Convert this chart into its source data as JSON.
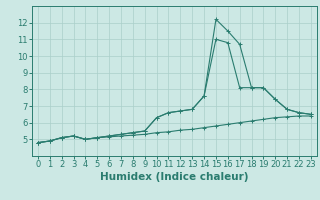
{
  "xlabel": "Humidex (Indice chaleur)",
  "x": [
    0,
    1,
    2,
    3,
    4,
    5,
    6,
    7,
    8,
    9,
    10,
    11,
    12,
    13,
    14,
    15,
    16,
    17,
    18,
    19,
    20,
    21,
    22,
    23
  ],
  "line1": [
    4.8,
    4.9,
    5.1,
    5.2,
    5.0,
    5.1,
    5.15,
    5.2,
    5.25,
    5.3,
    5.4,
    5.45,
    5.55,
    5.6,
    5.7,
    5.8,
    5.9,
    6.0,
    6.1,
    6.2,
    6.3,
    6.35,
    6.4,
    6.4
  ],
  "line2": [
    4.8,
    4.9,
    5.1,
    5.2,
    5.0,
    5.1,
    5.2,
    5.3,
    5.4,
    5.5,
    6.3,
    6.6,
    6.7,
    6.8,
    7.6,
    11.0,
    10.8,
    8.1,
    8.1,
    8.1,
    7.4,
    6.8,
    6.6,
    6.5
  ],
  "line3": [
    4.8,
    4.9,
    5.1,
    5.2,
    5.0,
    5.1,
    5.2,
    5.3,
    5.4,
    5.5,
    6.3,
    6.6,
    6.7,
    6.8,
    7.6,
    12.2,
    11.5,
    10.7,
    8.1,
    8.1,
    7.4,
    6.8,
    6.6,
    6.5
  ],
  "ylim": [
    4,
    13
  ],
  "xlim": [
    -0.5,
    23.5
  ],
  "yticks": [
    5,
    6,
    7,
    8,
    9,
    10,
    11,
    12
  ],
  "xticks": [
    0,
    1,
    2,
    3,
    4,
    5,
    6,
    7,
    8,
    9,
    10,
    11,
    12,
    13,
    14,
    15,
    16,
    17,
    18,
    19,
    20,
    21,
    22,
    23
  ],
  "line_color": "#2a7c6f",
  "bg_color": "#cce8e4",
  "grid_color": "#aacfca",
  "tick_fontsize": 6,
  "xlabel_fontsize": 7.5
}
